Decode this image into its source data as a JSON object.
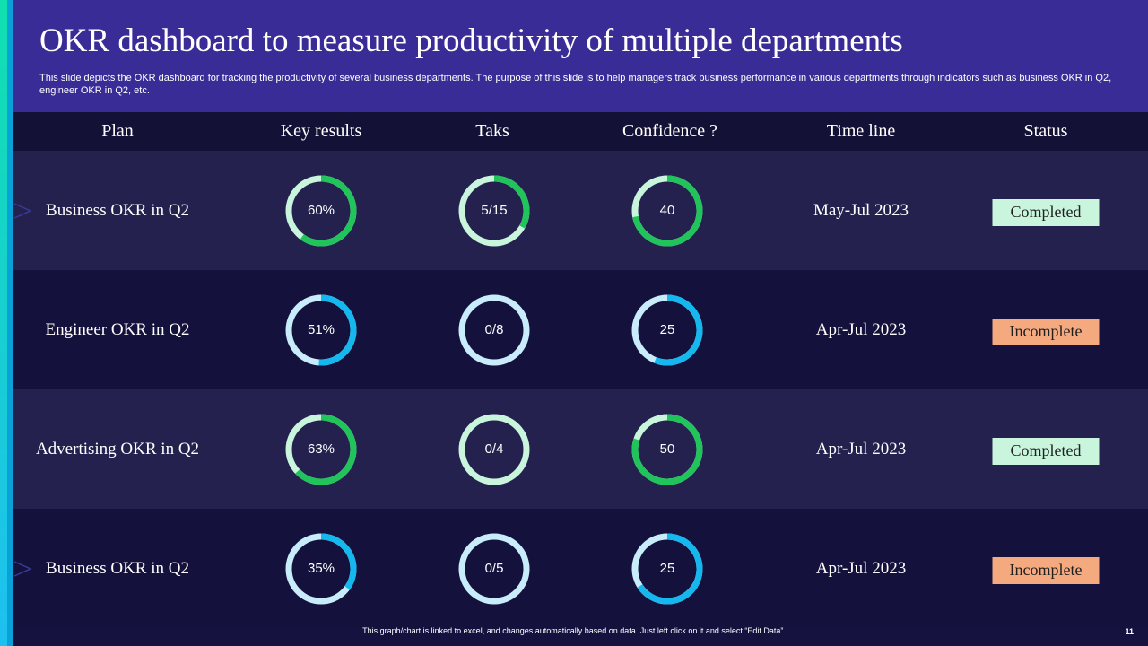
{
  "slide": {
    "title": "OKR dashboard to measure productivity of multiple departments",
    "subtitle": "This slide depicts the OKR dashboard for tracking the productivity of several business departments. The purpose of this slide is to help managers track business performance in various departments through indicators such as business OKR in Q2, engineer OKR in Q2, etc.",
    "footer": "This graph/chart is linked to excel, and changes automatically based on data. Just left click on it and select “Edit Data”.",
    "page_number": "11"
  },
  "colors": {
    "green": "#21c45a",
    "green_track": "#c8f5dc",
    "blue": "#14b8ef",
    "blue_track": "#c8ecfa",
    "completed_bg": "#c8f5dc",
    "incomplete_bg": "#f5a97e"
  },
  "table": {
    "headers": {
      "plan": "Plan",
      "key_results": "Key results",
      "tasks": "Taks",
      "confidence": "Confidence ?",
      "timeline": "Time line",
      "status": "Status"
    },
    "rows": [
      {
        "plan": "Business OKR in Q2",
        "key_results": {
          "label": "60%",
          "fraction": 0.6,
          "color": "green"
        },
        "tasks": {
          "label": "5/15",
          "fraction": 0.333,
          "color": "green"
        },
        "confidence": {
          "label": "40",
          "fraction": 0.72,
          "color": "green"
        },
        "timeline": "May-Jul 2023",
        "status": {
          "label": "Completed",
          "type": "completed"
        },
        "marker": "chevron-right-icon"
      },
      {
        "plan": "Engineer OKR in Q2",
        "key_results": {
          "label": "51%",
          "fraction": 0.51,
          "color": "blue"
        },
        "tasks": {
          "label": "0/8",
          "fraction": 0,
          "color": "blue"
        },
        "confidence": {
          "label": "25",
          "fraction": 0.56,
          "color": "blue"
        },
        "timeline": "Apr-Jul 2023",
        "status": {
          "label": "Incomplete",
          "type": "incomplete"
        },
        "marker": ""
      },
      {
        "plan": "Advertising OKR in Q2",
        "key_results": {
          "label": "63%",
          "fraction": 0.63,
          "color": "green"
        },
        "tasks": {
          "label": "0/4",
          "fraction": 0,
          "color": "green"
        },
        "confidence": {
          "label": "50",
          "fraction": 0.8,
          "color": "green"
        },
        "timeline": "Apr-Jul 2023",
        "status": {
          "label": "Completed",
          "type": "completed"
        },
        "marker": ""
      },
      {
        "plan": "Business OKR in Q2",
        "key_results": {
          "label": "35%",
          "fraction": 0.35,
          "color": "blue"
        },
        "tasks": {
          "label": "0/5",
          "fraction": 0,
          "color": "blue"
        },
        "confidence": {
          "label": "25",
          "fraction": 0.66,
          "color": "blue"
        },
        "timeline": "Apr-Jul 2023",
        "status": {
          "label": "Incomplete",
          "type": "incomplete"
        },
        "marker": "chevron-right-icon"
      }
    ]
  }
}
